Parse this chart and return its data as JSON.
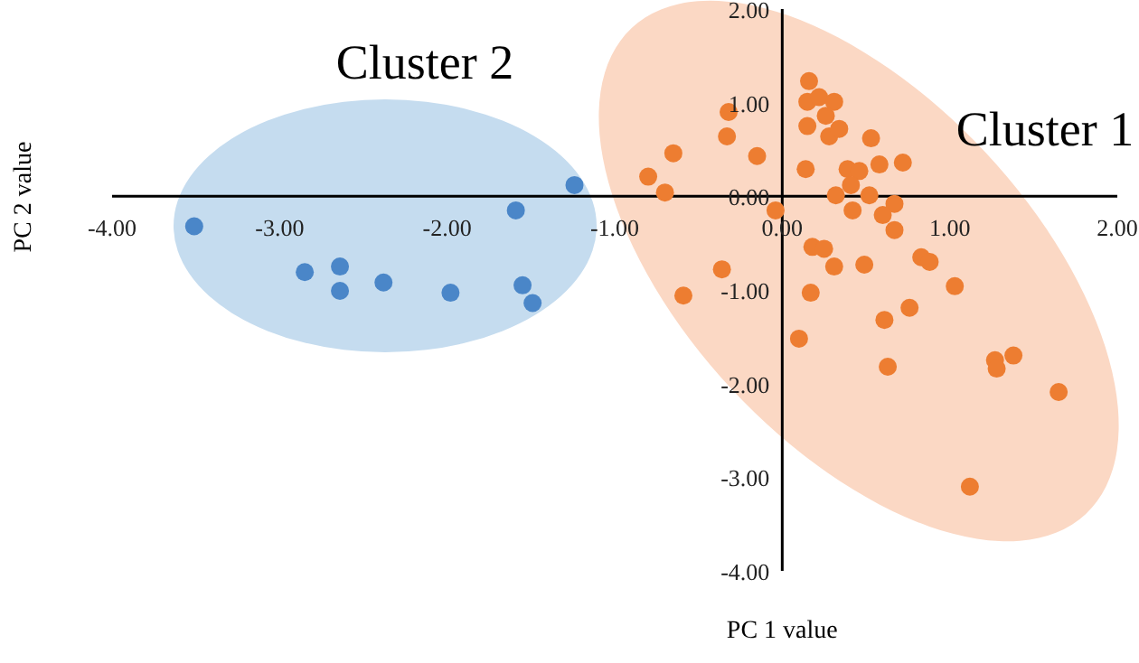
{
  "chart_data": {
    "type": "scatter",
    "xlabel": "PC 1 value",
    "ylabel": "PC 2 value",
    "annotations": [
      "Cluster 2",
      "Cluster 1"
    ],
    "xlim": [
      -4,
      2
    ],
    "ylim": [
      -4,
      2
    ],
    "xticks": [
      {
        "value": -4,
        "label": "-4.00"
      },
      {
        "value": -3,
        "label": "-3.00"
      },
      {
        "value": -2,
        "label": "-2.00"
      },
      {
        "value": -1,
        "label": "-1.00"
      },
      {
        "value": 0,
        "label": "0.00"
      },
      {
        "value": 1,
        "label": "1.00"
      },
      {
        "value": 2,
        "label": "2.00"
      }
    ],
    "yticks": [
      {
        "value": -4,
        "label": "-4.00"
      },
      {
        "value": -3,
        "label": "-3.00"
      },
      {
        "value": -2,
        "label": "-2.00"
      },
      {
        "value": -1,
        "label": "-1.00"
      },
      {
        "value": 0,
        "label": "0.00"
      },
      {
        "value": 1,
        "label": "1.00"
      },
      {
        "value": 2,
        "label": "2.00"
      }
    ],
    "grid": false,
    "legend": false,
    "marker": "circle",
    "series": [
      {
        "color": "#4a86c8",
        "x": [
          -3.51,
          -2.85,
          -2.64,
          -2.64,
          -2.38,
          -1.98,
          -1.59,
          -1.24,
          -1.55,
          -1.49
        ],
        "values": [
          -0.32,
          -0.81,
          -0.75,
          -1.01,
          -0.92,
          -1.03,
          -0.15,
          0.12,
          -0.95,
          -1.14
        ]
      },
      {
        "color": "#ed7d31",
        "x": [
          0.16,
          0.15,
          0.22,
          0.31,
          0.26,
          0.15,
          0.28,
          0.34,
          0.53,
          -0.32,
          -0.33,
          -0.65,
          -0.15,
          -0.8,
          -0.7,
          0.14,
          0.39,
          0.46,
          0.58,
          0.72,
          0.41,
          0.32,
          0.52,
          0.42,
          -0.04,
          0.67,
          0.6,
          0.67,
          0.18,
          0.25,
          0.31,
          0.49,
          0.83,
          0.88,
          -0.36,
          -0.59,
          0.17,
          1.03,
          0.76,
          0.61,
          0.1,
          0.63,
          1.27,
          1.38,
          1.28,
          1.65,
          1.12
        ],
        "values": [
          1.23,
          1.01,
          1.06,
          1.01,
          0.86,
          0.75,
          0.64,
          0.72,
          0.62,
          0.9,
          0.64,
          0.46,
          0.43,
          0.21,
          0.04,
          0.29,
          0.29,
          0.27,
          0.34,
          0.36,
          0.12,
          0.01,
          0.01,
          -0.15,
          -0.15,
          -0.08,
          -0.2,
          -0.36,
          -0.54,
          -0.56,
          -0.75,
          -0.73,
          -0.65,
          -0.7,
          -0.78,
          -1.06,
          -1.03,
          -0.96,
          -1.19,
          -1.32,
          -1.52,
          -1.82,
          -1.75,
          -1.7,
          -1.84,
          -2.09,
          -3.1
        ]
      }
    ]
  }
}
